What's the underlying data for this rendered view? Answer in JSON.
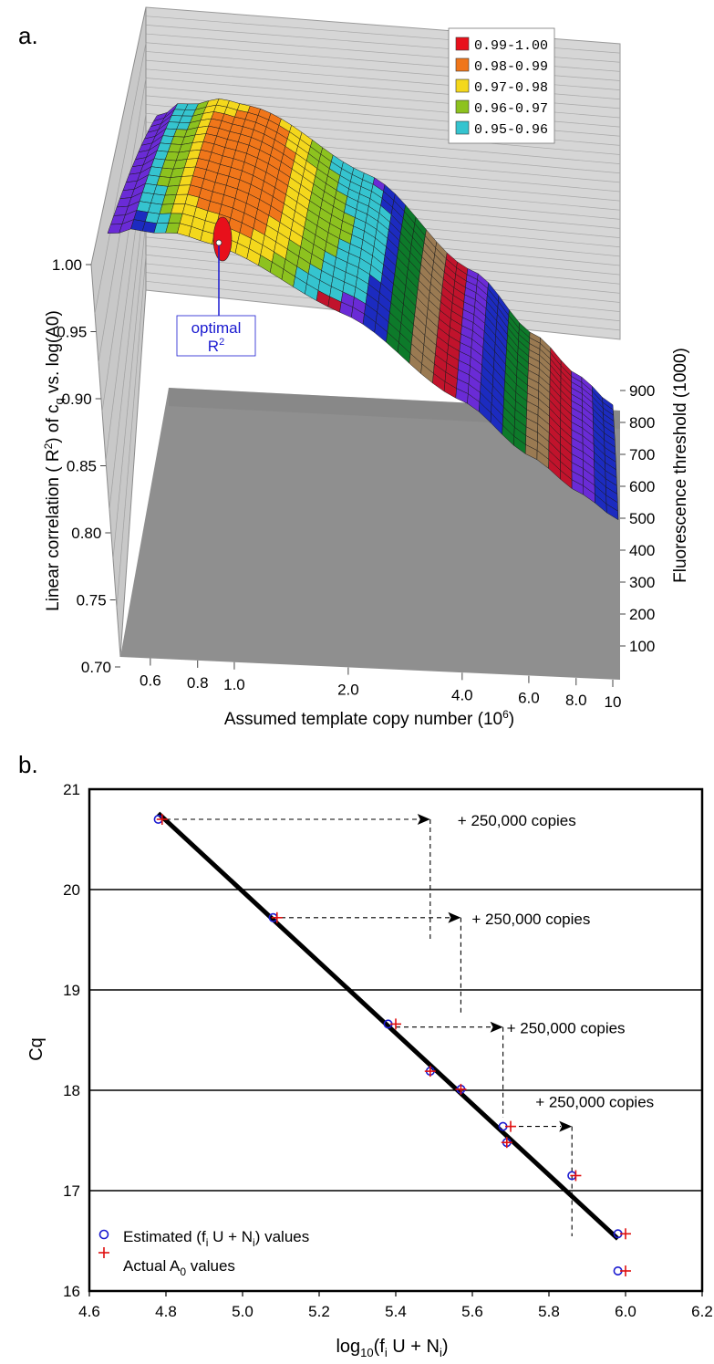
{
  "panel_a": {
    "label": "a.",
    "annotation": "optimal",
    "annotation_sup": "R2",
    "legend": [
      {
        "label": "0.99-1.00",
        "color": "#e8101b"
      },
      {
        "label": "0.98-0.99",
        "color": "#f0761a"
      },
      {
        "label": "0.97-0.98",
        "color": "#f4d81c"
      },
      {
        "label": "0.96-0.97",
        "color": "#8dc21f"
      },
      {
        "label": "0.95-0.96",
        "color": "#35c4cf"
      }
    ],
    "band_colors": [
      "#6a2bd6",
      "#1c2bc0",
      "#0d7a2a",
      "#9a7a52",
      "#c1132c"
    ],
    "z_ticks": [
      "1.00",
      "0.95",
      "0.90",
      "0.85",
      "0.80",
      "0.75",
      "0.70"
    ],
    "x_ticks": [
      "0.6",
      "0.8",
      "1.0",
      "2.0",
      "4.0",
      "6.0",
      "8.0",
      "10"
    ],
    "y_ticks": [
      "900",
      "800",
      "700",
      "600",
      "500",
      "400",
      "300",
      "200",
      "100"
    ],
    "zlabel": "Linear correlation ( R2) of cq vs. log(A0)",
    "xlabel": "Assumed template copy number (106)",
    "ylabel": "Fluorescence threshold (1000)"
  },
  "panel_b": {
    "label": "b.",
    "arrow_label": "+ 250,000 copies",
    "legend_estimated": "Estimated (fi U + Ni) values",
    "legend_actual": "Actual A0 values",
    "estimated_color": "#1a1ad0",
    "actual_color": "#e01010"
  },
  "chart_data": [
    {
      "type": "surface",
      "title": "",
      "xlabel": "Assumed template copy number (10^6)",
      "ylabel": "Fluorescence threshold (1000)",
      "zlabel": "Linear correlation ( R^2) of cq vs. log(A0)",
      "x_scale": "log",
      "x_range": [
        0.5,
        10
      ],
      "y_range": [
        0,
        1000
      ],
      "z_range": [
        0.7,
        1.0
      ],
      "peak": {
        "x": 1.0,
        "z": 0.99
      },
      "ridge_profile": {
        "x": [
          0.5,
          0.6,
          0.8,
          1.0,
          2.0,
          4.0,
          6.0,
          8.0,
          10
        ],
        "z": [
          0.93,
          0.96,
          0.985,
          0.99,
          0.96,
          0.89,
          0.84,
          0.81,
          0.79
        ]
      },
      "legend": [
        "0.99-1.00",
        "0.98-0.99",
        "0.97-0.98",
        "0.96-0.97",
        "0.95-0.96"
      ],
      "legend_position": "top-right"
    },
    {
      "type": "scatter",
      "title": "",
      "xlabel": "log10(fi U + Ni)",
      "ylabel": "Cq",
      "xlim": [
        4.6,
        6.2
      ],
      "ylim": [
        16,
        21
      ],
      "x_ticks": [
        "4.6",
        "4.8",
        "5.0",
        "5.2",
        "5.4",
        "5.6",
        "5.8",
        "6.0",
        "6.2"
      ],
      "y_ticks": [
        "16",
        "17",
        "18",
        "19",
        "20",
        "21"
      ],
      "grid": "horizontal",
      "legend_position": "bottom-left",
      "series": [
        {
          "name": "Estimated (fi U + Ni) values",
          "marker": "circle",
          "x": [
            4.78,
            5.08,
            5.38,
            5.49,
            5.57,
            5.68,
            5.69,
            5.86,
            5.98,
            5.98
          ],
          "y": [
            20.7,
            19.72,
            18.66,
            18.19,
            18.01,
            17.64,
            17.48,
            17.15,
            16.57,
            16.2
          ]
        },
        {
          "name": "Actual A0 values",
          "marker": "plus",
          "x": [
            4.79,
            5.09,
            5.4,
            5.49,
            5.57,
            5.7,
            5.69,
            5.87,
            6.0,
            6.0
          ],
          "y": [
            20.7,
            19.72,
            18.66,
            18.19,
            18.01,
            17.64,
            17.48,
            17.15,
            16.57,
            16.2
          ]
        },
        {
          "name": "",
          "type": "line",
          "x": [
            4.78,
            5.98
          ],
          "y": [
            20.76,
            16.52
          ]
        }
      ],
      "arrows": [
        {
          "from": [
            4.8,
            20.7
          ],
          "to": [
            5.49,
            20.7
          ],
          "label": "+ 250,000 copies"
        },
        {
          "from": [
            5.1,
            19.72
          ],
          "to": [
            5.57,
            19.72
          ],
          "label": "+ 250,000 copies"
        },
        {
          "from": [
            5.4,
            18.63
          ],
          "to": [
            5.68,
            18.63
          ],
          "label": "+ 250,000 copies"
        },
        {
          "from": [
            5.7,
            17.64
          ],
          "to": [
            5.86,
            17.64
          ],
          "label": "+ 250,000 copies"
        }
      ]
    }
  ]
}
